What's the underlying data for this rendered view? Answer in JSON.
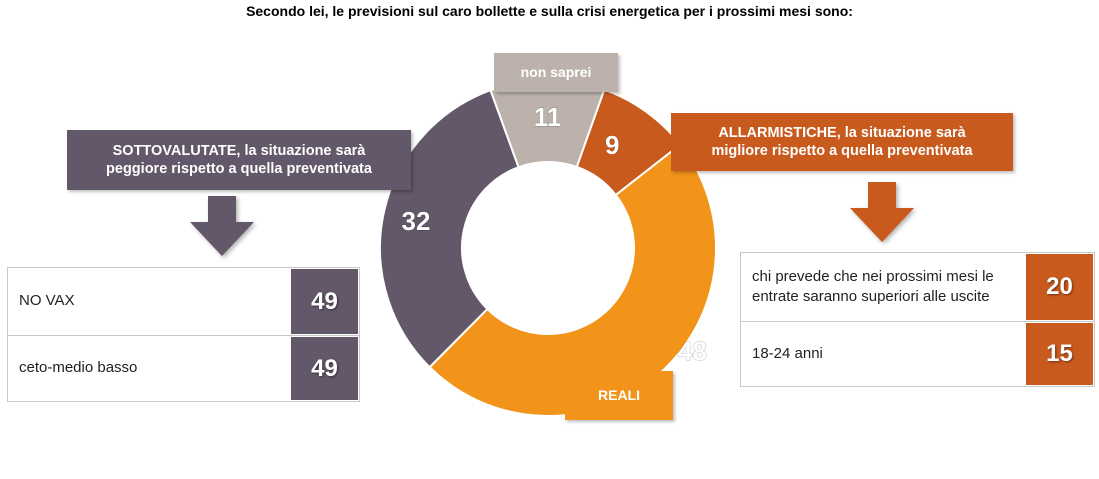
{
  "title": "Secondo lei, le previsioni sul caro bollette e sulla crisi energetica per i prossimi mesi sono:",
  "chart_data": {
    "type": "pie",
    "variant": "donut",
    "slices": [
      {
        "name": "SOTTOVALUTATE, la situazione sarà peggiore rispetto a quella preventivata",
        "value": 32,
        "label": "32",
        "color": "#625869"
      },
      {
        "name": "non saprei",
        "value": 11,
        "label": "11",
        "color": "#BCB2AB"
      },
      {
        "name": "ALLARMISTICHE, la situazione sarà migliore rispetto a quella preventivata",
        "value": 9,
        "label": "9",
        "color": "#C85A1E"
      },
      {
        "name": "REALI",
        "value": 48,
        "label": "48",
        "color": "#F29419"
      }
    ]
  },
  "callouts": {
    "left_line1": "SOTTOVALUTATE, la situazione sarà",
    "left_line2": "peggiore rispetto a quella preventivata",
    "right_line1": "ALLARMISTICHE, la situazione sarà",
    "right_line2": "migliore rispetto a quella preventivata",
    "top": "non saprei",
    "bottom": "REALI"
  },
  "left_table": {
    "color": "#625869",
    "rows": [
      {
        "label": "NO VAX",
        "value": "49"
      },
      {
        "label": "ceto-medio basso",
        "value": "49"
      }
    ]
  },
  "right_table": {
    "color": "#C85A1E",
    "rows": [
      {
        "label_line1": "chi prevede che nei prossimi mesi le",
        "label_line2": "entrate saranno superiori alle uscite",
        "value": "20"
      },
      {
        "label_line1": "18-24 anni",
        "label_line2": "",
        "value": "15"
      }
    ]
  }
}
